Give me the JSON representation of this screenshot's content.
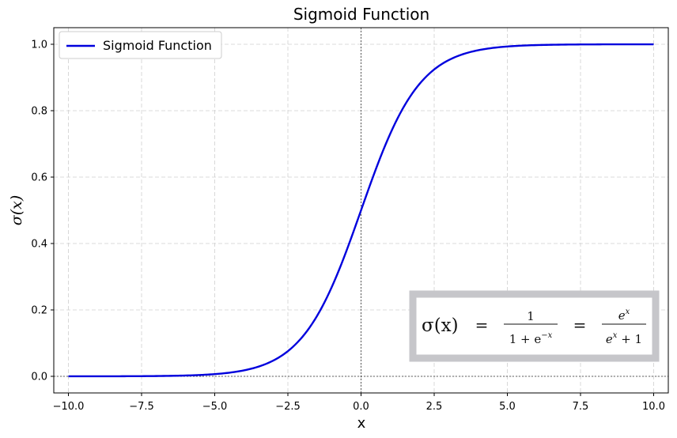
{
  "chart_data": {
    "type": "line",
    "title": "Sigmoid Function",
    "xlabel": "x",
    "ylabel": "σ(x)",
    "xlim": [
      -10.5,
      10.5
    ],
    "ylim": [
      -0.05,
      1.05
    ],
    "xticks": [
      -10.0,
      -7.5,
      -5.0,
      -2.5,
      0.0,
      2.5,
      5.0,
      7.5,
      10.0
    ],
    "xtick_labels": [
      "−10.0",
      "−7.5",
      "−5.0",
      "−2.5",
      "0.0",
      "2.5",
      "5.0",
      "7.5",
      "10.0"
    ],
    "yticks": [
      0.0,
      0.2,
      0.4,
      0.6,
      0.8,
      1.0
    ],
    "ytick_labels": [
      "0.0",
      "0.2",
      "0.4",
      "0.6",
      "0.8",
      "1.0"
    ],
    "grid": true,
    "legend": "top-left",
    "reference_lines": {
      "x": 0,
      "y": 0
    },
    "series": [
      {
        "name": "Sigmoid Function",
        "color": "#0000dd",
        "x": [
          -10,
          -9,
          -8,
          -7,
          -6,
          -5,
          -4,
          -3,
          -2.5,
          -2,
          -1.5,
          -1,
          -0.5,
          0,
          0.5,
          1,
          1.5,
          2,
          2.5,
          3,
          4,
          5,
          6,
          7,
          8,
          9,
          10
        ],
        "y": [
          0.0,
          0.0001,
          0.0003,
          0.0009,
          0.0025,
          0.0067,
          0.018,
          0.0474,
          0.0759,
          0.1192,
          0.1824,
          0.2689,
          0.3775,
          0.5,
          0.6225,
          0.7311,
          0.8176,
          0.8808,
          0.9241,
          0.9526,
          0.982,
          0.9933,
          0.9975,
          0.9991,
          0.9997,
          0.9999,
          1.0
        ]
      }
    ],
    "annotation": {
      "lhs": "σ(x)",
      "eq": "=",
      "frac1_num": "1",
      "frac1_den_main": "1 + e",
      "frac1_den_sup": "−x",
      "frac2_num_main": "e",
      "frac2_num_sup": "x",
      "frac2_den_main": "e",
      "frac2_den_sup": "x",
      "frac2_den_tail": " + 1",
      "frame_color": "#c6c6ca"
    }
  }
}
